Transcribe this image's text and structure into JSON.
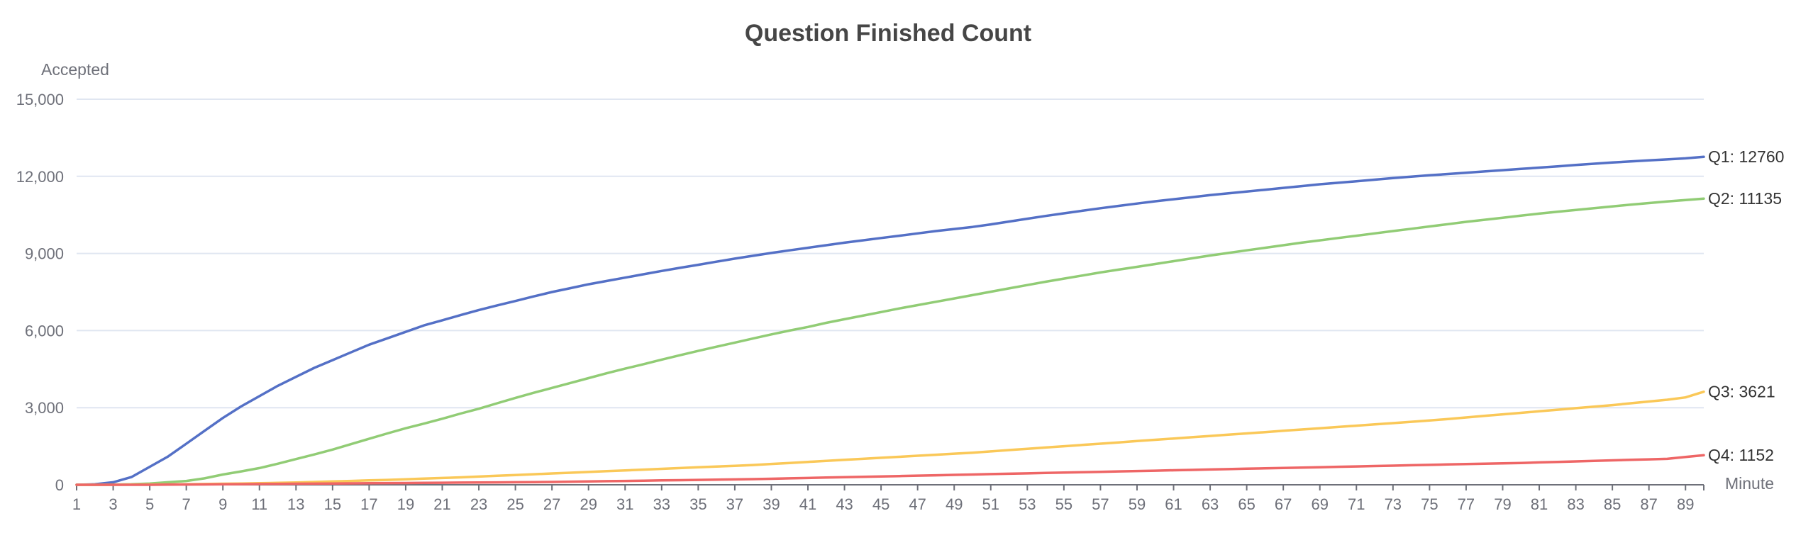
{
  "chart_data": {
    "type": "line",
    "title": "Question Finished Count",
    "xlabel": "Minute",
    "ylabel": "Accepted",
    "x": [
      1,
      2,
      3,
      4,
      5,
      6,
      7,
      8,
      9,
      10,
      11,
      12,
      13,
      14,
      15,
      16,
      17,
      18,
      19,
      20,
      21,
      22,
      23,
      24,
      25,
      26,
      27,
      28,
      29,
      30,
      31,
      32,
      33,
      34,
      35,
      36,
      37,
      38,
      39,
      40,
      41,
      42,
      43,
      44,
      45,
      46,
      47,
      48,
      49,
      50,
      51,
      52,
      53,
      54,
      55,
      56,
      57,
      58,
      59,
      60,
      61,
      62,
      63,
      64,
      65,
      66,
      67,
      68,
      69,
      70,
      71,
      72,
      73,
      74,
      75,
      76,
      77,
      78,
      79,
      80,
      81,
      82,
      83,
      84,
      85,
      86,
      87,
      88,
      89,
      90
    ],
    "xticks": [
      "1",
      "3",
      "5",
      "7",
      "9",
      "11",
      "13",
      "15",
      "17",
      "19",
      "21",
      "23",
      "25",
      "27",
      "29",
      "31",
      "33",
      "35",
      "37",
      "39",
      "41",
      "43",
      "45",
      "47",
      "49",
      "51",
      "53",
      "55",
      "57",
      "59",
      "61",
      "63",
      "65",
      "67",
      "69",
      "71",
      "73",
      "75",
      "77",
      "79",
      "81",
      "83",
      "85",
      "87",
      "89"
    ],
    "yticks": [
      "0",
      "3,000",
      "6,000",
      "9,000",
      "12,000",
      "15,000"
    ],
    "ylim": [
      0,
      15000
    ],
    "grid": true,
    "legend": "end-labels",
    "series": [
      {
        "name": "Q1",
        "color": "#5470c6",
        "end_label": "Q1: 12760",
        "values": [
          0,
          20,
          100,
          300,
          700,
          1100,
          1600,
          2100,
          2600,
          3050,
          3450,
          3850,
          4200,
          4550,
          4850,
          5150,
          5450,
          5700,
          5950,
          6200,
          6400,
          6600,
          6800,
          6980,
          7150,
          7330,
          7500,
          7650,
          7800,
          7930,
          8060,
          8190,
          8320,
          8440,
          8560,
          8680,
          8800,
          8910,
          9020,
          9120,
          9220,
          9320,
          9420,
          9510,
          9600,
          9690,
          9780,
          9870,
          9950,
          10030,
          10130,
          10240,
          10350,
          10460,
          10560,
          10660,
          10760,
          10850,
          10940,
          11030,
          11110,
          11190,
          11270,
          11340,
          11410,
          11480,
          11550,
          11620,
          11690,
          11750,
          11810,
          11870,
          11930,
          11990,
          12040,
          12090,
          12140,
          12190,
          12240,
          12290,
          12340,
          12390,
          12440,
          12490,
          12540,
          12580,
          12620,
          12660,
          12700,
          12760
        ]
      },
      {
        "name": "Q2",
        "color": "#91cc75",
        "end_label": "Q2: 11135",
        "values": [
          0,
          0,
          5,
          20,
          50,
          100,
          150,
          250,
          400,
          520,
          650,
          820,
          1000,
          1180,
          1370,
          1580,
          1790,
          2000,
          2200,
          2380,
          2570,
          2770,
          2960,
          3170,
          3380,
          3580,
          3770,
          3960,
          4150,
          4340,
          4520,
          4690,
          4870,
          5040,
          5210,
          5370,
          5530,
          5690,
          5850,
          6000,
          6140,
          6300,
          6440,
          6580,
          6720,
          6860,
          6990,
          7120,
          7250,
          7380,
          7510,
          7640,
          7770,
          7900,
          8020,
          8140,
          8260,
          8370,
          8480,
          8590,
          8700,
          8810,
          8920,
          9020,
          9120,
          9220,
          9320,
          9420,
          9510,
          9600,
          9690,
          9780,
          9870,
          9960,
          10050,
          10140,
          10230,
          10310,
          10390,
          10470,
          10550,
          10620,
          10690,
          10760,
          10830,
          10900,
          10960,
          11020,
          11080,
          11135
        ]
      },
      {
        "name": "Q3",
        "color": "#fac858",
        "end_label": "Q3: 3621",
        "values": [
          0,
          0,
          0,
          5,
          10,
          15,
          20,
          30,
          40,
          50,
          60,
          75,
          90,
          110,
          130,
          150,
          170,
          190,
          215,
          240,
          265,
          290,
          320,
          350,
          380,
          410,
          440,
          470,
          500,
          530,
          560,
          590,
          620,
          650,
          680,
          710,
          740,
          770,
          810,
          850,
          890,
          930,
          970,
          1010,
          1050,
          1090,
          1130,
          1170,
          1210,
          1250,
          1300,
          1350,
          1400,
          1450,
          1500,
          1550,
          1600,
          1650,
          1700,
          1750,
          1800,
          1850,
          1900,
          1950,
          2000,
          2050,
          2100,
          2150,
          2200,
          2250,
          2300,
          2350,
          2400,
          2450,
          2500,
          2560,
          2620,
          2680,
          2740,
          2800,
          2860,
          2920,
          2980,
          3040,
          3100,
          3170,
          3240,
          3310,
          3400,
          3621
        ]
      },
      {
        "name": "Q4",
        "color": "#ee6666",
        "end_label": "Q4: 1152",
        "values": [
          0,
          0,
          0,
          0,
          0,
          5,
          10,
          15,
          20,
          25,
          30,
          35,
          40,
          45,
          50,
          55,
          60,
          65,
          70,
          75,
          80,
          85,
          90,
          95,
          100,
          105,
          110,
          120,
          130,
          140,
          150,
          160,
          170,
          180,
          190,
          200,
          210,
          220,
          235,
          250,
          265,
          280,
          295,
          310,
          325,
          340,
          355,
          370,
          385,
          400,
          415,
          430,
          445,
          460,
          475,
          490,
          505,
          520,
          535,
          550,
          565,
          580,
          595,
          610,
          625,
          640,
          655,
          670,
          685,
          700,
          715,
          730,
          745,
          760,
          775,
          790,
          805,
          820,
          835,
          850,
          870,
          890,
          910,
          930,
          950,
          970,
          990,
          1010,
          1080,
          1152
        ]
      }
    ]
  }
}
